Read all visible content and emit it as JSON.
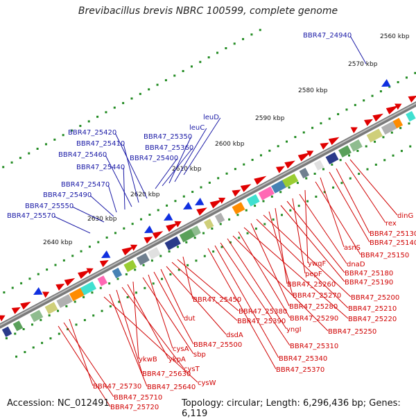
{
  "title": "Brevibacillus brevis NBRC 100599, complete genome",
  "footer": {
    "accession": "Accession: NC_012491",
    "summary": "Topology: circular; Length: 6,296,436 bp; Genes: 6,119"
  },
  "scale_labels": [
    "2560 kbp",
    "2570 kbp",
    "2580 kbp",
    "2590 kbp",
    "2600 kbp",
    "2610 kbp",
    "2620 kbp",
    "2630 kbp",
    "2640 kbp"
  ],
  "blue_labels": [
    "BBR47_24940",
    "leuD",
    "leuC",
    "BBR47_25350",
    "BBR47_25360",
    "BBR47_25400",
    "BBR47_25420",
    "BBR47_25410",
    "BBR47_25460",
    "BBR47_25440",
    "BBR47_25470",
    "BBR47_25490",
    "BBR47_25550",
    "BBR47_25570"
  ],
  "red_labels": [
    "dinG",
    "rex",
    "BBR47_25130",
    "BBR47_25140",
    "asnS",
    "BBR47_25150",
    "ywqF",
    "dnaD",
    "pepF",
    "BBR47_25180",
    "BBR47_25190",
    "BBR47_25260",
    "BBR47_25270",
    "BBR47_25200",
    "BBR47_25210",
    "BBR47_25280",
    "BBR47_25220",
    "BBR47_25290",
    "BBR47_25250",
    "yngI",
    "BBR47_25310",
    "BBR47_25340",
    "BBR47_25370",
    "BBR47_25450",
    "BBR47_25380",
    "BBR47_25390",
    "dsdA",
    "dut",
    "BBR47_25500",
    "cysA",
    "sbp",
    "ykwB",
    "ykpA",
    "cysT",
    "BBR47_25630",
    "BBR47_25640",
    "cysW",
    "BBR47_25730",
    "BBR47_25710",
    "BBR47_25720"
  ],
  "colors": {
    "forward": "#e00000",
    "reverse": "#1030e0",
    "backbone": "#7a7a7a",
    "ticks": "#228b22",
    "label_blue": "#1a1aa6",
    "label_red": "#d00000"
  }
}
